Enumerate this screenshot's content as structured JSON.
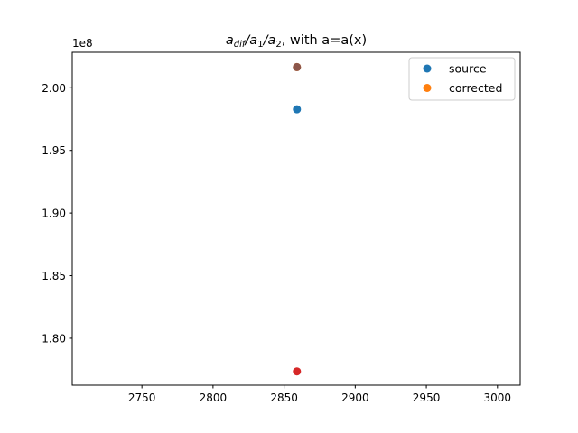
{
  "chart_data": {
    "type": "scatter",
    "title": {
      "main": "a",
      "sub1": "dif",
      "slash1": "/a",
      "sub2": "1",
      "slash2": "/a",
      "sub3": "2",
      "suffix": ", with a=a(x)"
    },
    "offset_label": "1e8",
    "xlim": [
      2701,
      3016
    ],
    "ylim": [
      1.7625,
      2.0283
    ],
    "xticks": [
      2750,
      2800,
      2850,
      2900,
      2950,
      3000
    ],
    "xtick_labels": [
      "2750",
      "2800",
      "2850",
      "2900",
      "2950",
      "3000"
    ],
    "yticks": [
      1.8,
      1.85,
      1.9,
      1.95,
      2.0
    ],
    "ytick_labels": [
      "1.80",
      "1.85",
      "1.90",
      "1.95",
      "2.00"
    ],
    "points": [
      {
        "name": "source",
        "x": 2859,
        "y": 1.9828,
        "color": "#1f77b4"
      },
      {
        "name": "corrected",
        "x": 2859,
        "y": 2.0165,
        "color": "#ff7f0e"
      },
      {
        "name": "",
        "x": 2859,
        "y": 1.7735,
        "color": "#d62728"
      },
      {
        "name": "",
        "x": 2859,
        "y": 2.0165,
        "color": "#8c564b"
      }
    ],
    "legend": [
      {
        "label": "source",
        "color": "#1f77b4"
      },
      {
        "label": "corrected",
        "color": "#ff7f0e"
      }
    ],
    "legend_position": "top-right"
  }
}
